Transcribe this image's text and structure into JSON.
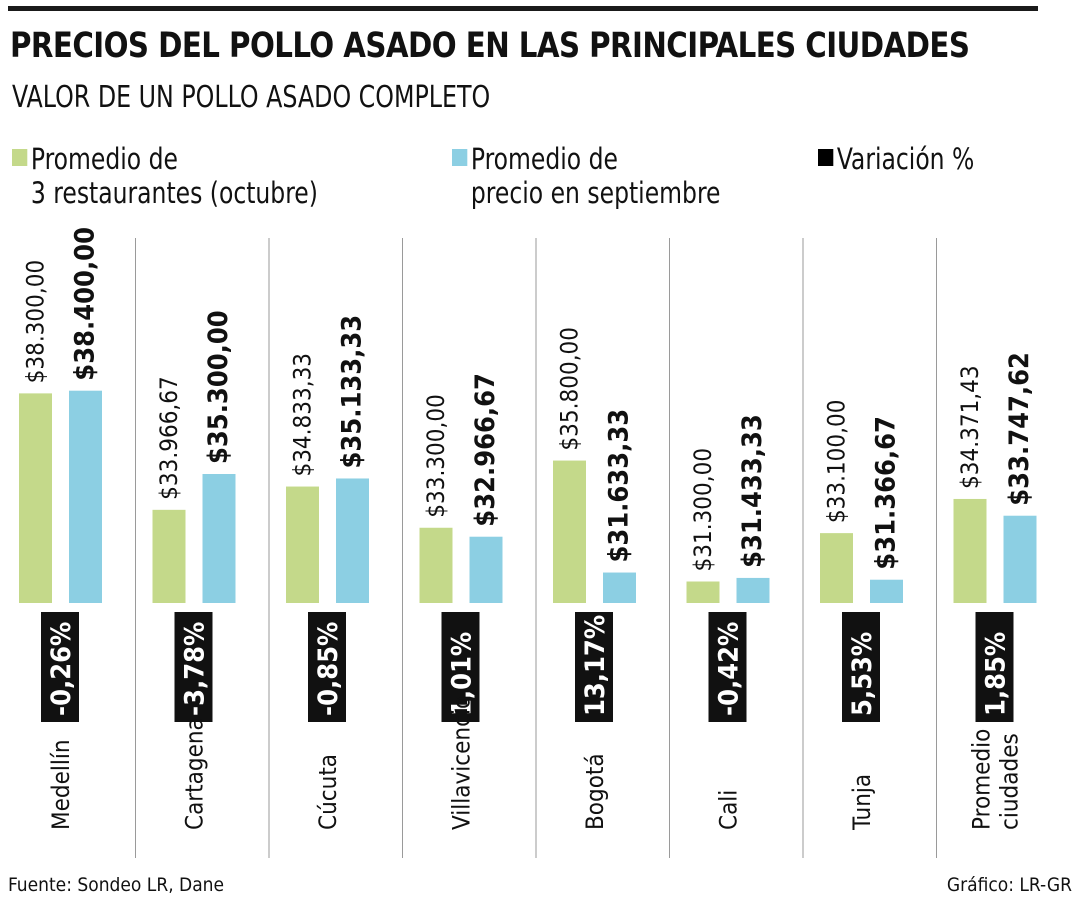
{
  "title": "PRECIOS DEL POLLO ASADO EN LAS PRINCIPALES CIUDADES",
  "subtitle": "VALOR DE UN POLLO ASADO COMPLETO",
  "legend": [
    {
      "name": "Promedio de 3 restaurantes (octubre)",
      "line1": "Promedio de",
      "line2": "3 restaurantes (octubre)",
      "color": "#c4d98a"
    },
    {
      "name": "Promedio de precio en septiembre",
      "line1": "Promedio de",
      "line2": "precio en septiembre",
      "color": "#8ccfe3"
    },
    {
      "name": "Variación %",
      "line1": "Variación %",
      "line2": "",
      "color": "#000000"
    }
  ],
  "footer": {
    "source": "Fuente: Sondeo LR, Dane",
    "credit": "Gráfico: LR-GR"
  },
  "chart_data": {
    "type": "bar",
    "title": "PRECIOS DEL POLLO ASADO EN LAS PRINCIPALES CIUDADES",
    "subtitle": "VALOR DE UN POLLO ASADO COMPLETO",
    "categories": [
      "Medellín",
      "Cartagena",
      "Cúcuta",
      "Villavicencio",
      "Bogotá",
      "Cali",
      "Tunja",
      "Promedio ciudades"
    ],
    "category_lines": [
      [
        "Medellín"
      ],
      [
        "Cartagena"
      ],
      [
        "Cúcuta"
      ],
      [
        "Villavicencio"
      ],
      [
        "Bogotá"
      ],
      [
        "Cali"
      ],
      [
        "Tunja"
      ],
      [
        "Promedio",
        "ciudades"
      ]
    ],
    "series": [
      {
        "name": "Promedio de 3 restaurantes (octubre)",
        "color": "#c4d98a",
        "values": [
          38300.0,
          33966.67,
          34833.33,
          33300.0,
          35800.0,
          31300.0,
          33100.0,
          34371.43
        ],
        "labels": [
          "$38.300,00",
          "$33.966,67",
          "$34.833,33",
          "$33.300,00",
          "$35.800,00",
          "$31.300,00",
          "$33.100,00",
          "$34.371,43"
        ]
      },
      {
        "name": "Promedio de precio en septiembre",
        "color": "#8ccfe3",
        "values": [
          38400.0,
          35300.0,
          35133.33,
          32966.67,
          31633.33,
          31433.33,
          31366.67,
          33747.62
        ],
        "labels": [
          "$38.400,00",
          "$35.300,00",
          "$35.133,33",
          "$32.966,67",
          "$31.633,33",
          "$31.433,33",
          "$31.366,67",
          "$33.747,62"
        ]
      }
    ],
    "variation": {
      "name": "Variación %",
      "values": [
        -0.26,
        -3.78,
        -0.85,
        1.01,
        13.17,
        -0.42,
        5.53,
        1.85
      ],
      "labels": [
        "-0,26%",
        "-3,78%",
        "-0,85%",
        "1,01%",
        "13,17%",
        "-0,42%",
        "5,53%",
        "1,85%"
      ]
    },
    "ylim": [
      30500,
      38500
    ],
    "xlabel": "",
    "ylabel": "",
    "legend_position": "top"
  }
}
